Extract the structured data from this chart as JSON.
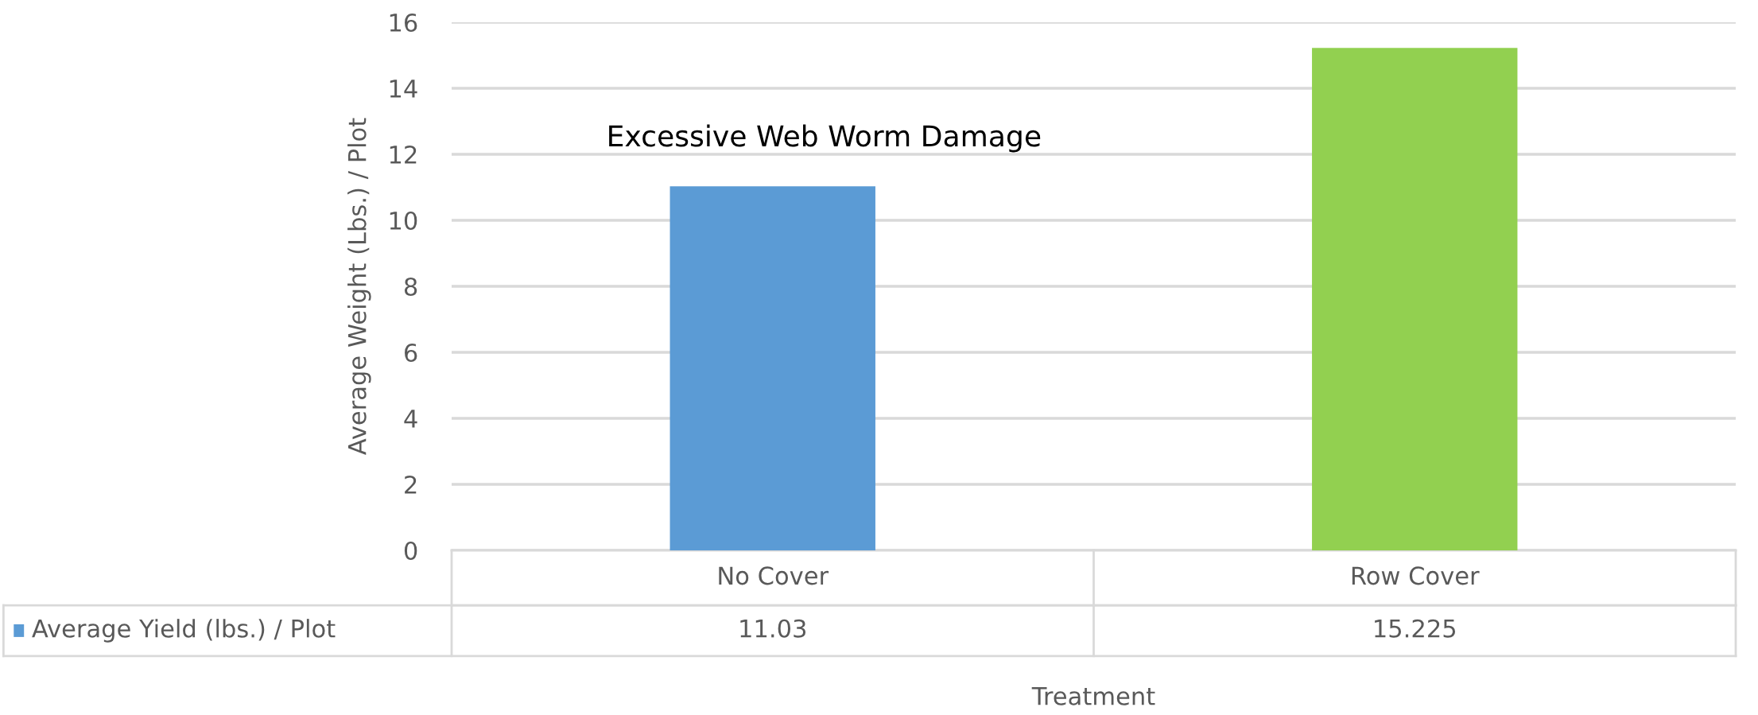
{
  "chart_data": {
    "type": "bar",
    "xlabel": "Treatment",
    "ylabel": "Average Weight (Lbs.) / Plot",
    "categories": [
      "No Cover",
      "Row Cover"
    ],
    "series": [
      {
        "name": "Average Yield (lbs.) / Plot",
        "colors": [
          "#5b9bd5",
          "#92d050"
        ],
        "values": [
          11.03,
          15.225
        ]
      }
    ],
    "ylim": [
      0,
      16
    ],
    "yticks": [
      0,
      2,
      4,
      6,
      8,
      10,
      12,
      14,
      16
    ],
    "grid": "y",
    "legend": "bottom",
    "data_labels": true,
    "annotations": [
      "Excessive Web Worm Damage"
    ]
  }
}
